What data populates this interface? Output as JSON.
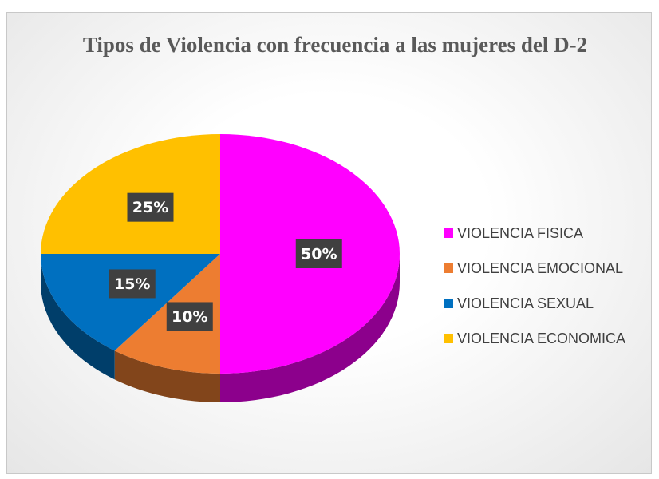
{
  "chart_data": {
    "type": "pie",
    "title": "Tipos de Violencia con frecuencia a las mujeres del D-2",
    "categories": [
      "VIOLENCIA FISICA",
      "VIOLENCIA EMOCIONAL",
      "VIOLENCIA SEXUAL",
      "VIOLENCIA ECONOMICA"
    ],
    "values": [
      50,
      10,
      15,
      25
    ],
    "value_labels": [
      "50%",
      "10%",
      "15%",
      "25%"
    ],
    "colors": [
      "#ff00ff",
      "#ed7d31",
      "#0070c0",
      "#ffc000"
    ],
    "legend": "right"
  }
}
